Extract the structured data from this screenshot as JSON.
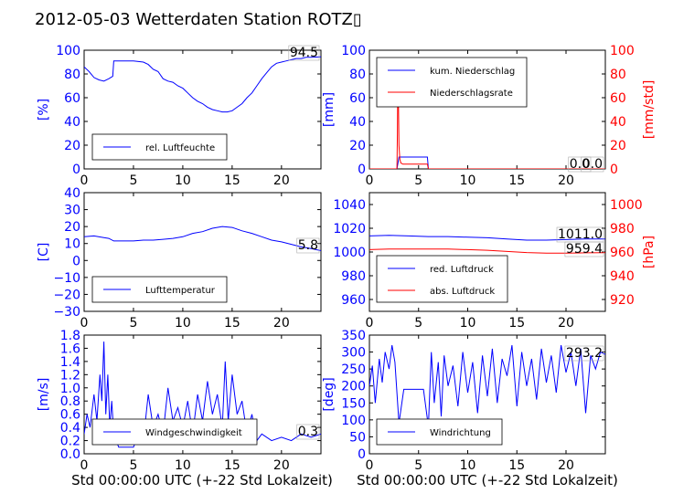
{
  "title": "2012-05-03 Wetterdaten Station ROTZ▯",
  "xlabel": "Std 00:00:00 UTC (+-22 Std Lokalzeit)",
  "colors": {
    "primary": "#0000ff",
    "secondary": "#ff0000",
    "axis": "#000000"
  },
  "chart_data": [
    {
      "id": "humidity",
      "type": "line",
      "ylabel": "[%]",
      "xlim": [
        0,
        24
      ],
      "ylim": [
        0,
        100
      ],
      "xticks": [
        "0",
        "5",
        "10",
        "15",
        "20"
      ],
      "yticks": [
        "0",
        "20",
        "40",
        "60",
        "80",
        "100"
      ],
      "value_box": "94.5",
      "legend": "lower-left",
      "series": [
        {
          "name": "rel. Luftfeuchte",
          "color": "#0000ff",
          "x": [
            0,
            0.5,
            1.0,
            1.5,
            2.0,
            2.5,
            2.9,
            3.0,
            4.0,
            5.0,
            6.0,
            6.5,
            7.0,
            7.5,
            8.0,
            8.5,
            9.0,
            9.5,
            10.0,
            10.5,
            11.0,
            11.5,
            12.0,
            12.5,
            13.0,
            13.5,
            14.0,
            14.5,
            15.0,
            15.5,
            16.0,
            16.5,
            17.0,
            17.5,
            18.0,
            18.5,
            19.0,
            19.5,
            20.0,
            20.5,
            21.0,
            21.5,
            22.0,
            22.5,
            23.0,
            24.0
          ],
          "y": [
            86,
            82,
            77,
            75,
            74,
            76,
            78,
            91,
            91,
            91,
            90,
            88,
            84,
            82,
            76,
            74,
            73,
            70,
            68,
            64,
            60,
            57,
            55,
            52,
            50,
            49,
            48,
            48,
            49,
            52,
            55,
            60,
            64,
            70,
            76,
            81,
            86,
            89,
            90,
            91,
            92,
            93,
            93,
            94,
            94,
            94.5
          ]
        }
      ]
    },
    {
      "id": "precipitation",
      "type": "line",
      "ylabel": "[mm]",
      "ylabel_right": "[mm/std]",
      "xlim": [
        0,
        24
      ],
      "ylim": [
        0,
        100
      ],
      "ylim_right": [
        0,
        100
      ],
      "xticks": [
        "0",
        "5",
        "10",
        "15",
        "20"
      ],
      "yticks": [
        "0",
        "20",
        "40",
        "60",
        "80",
        "100"
      ],
      "yticks_right": [
        "0",
        "20",
        "40",
        "60",
        "80",
        "100"
      ],
      "value_box": "0.0",
      "value_box2": "0.0",
      "legend": "upper-left",
      "series": [
        {
          "name": "kum. Niederschlag",
          "color": "#0000ff",
          "axis": "left",
          "x": [
            0,
            2.8,
            2.9,
            3.0,
            5.9,
            6.0,
            24
          ],
          "y": [
            0,
            0,
            5,
            10,
            10,
            0,
            0
          ]
        },
        {
          "name": "Niederschlagsrate",
          "color": "#ff0000",
          "axis": "right",
          "x": [
            0,
            2.8,
            2.85,
            2.9,
            2.95,
            3.0,
            3.1,
            3.2,
            3.4,
            5.9,
            6.0,
            24
          ],
          "y": [
            0,
            0,
            30,
            93,
            60,
            20,
            8,
            5,
            4,
            4,
            0,
            0
          ]
        }
      ]
    },
    {
      "id": "temperature",
      "type": "line",
      "ylabel": "[C]",
      "xlim": [
        0,
        24
      ],
      "ylim": [
        -30,
        40
      ],
      "xticks": [
        "0",
        "5",
        "10",
        "15",
        "20"
      ],
      "yticks": [
        "−30",
        "−20",
        "−10",
        "0",
        "10",
        "20",
        "30",
        "40"
      ],
      "value_box": "5.8",
      "legend": "lower-left",
      "series": [
        {
          "name": "Lufttemperatur",
          "color": "#0000ff",
          "x": [
            0,
            1,
            2,
            2.5,
            3,
            4,
            5,
            6,
            7,
            8,
            9,
            10,
            11,
            12,
            13,
            14,
            15,
            16,
            17,
            18,
            19,
            20,
            21,
            22,
            23,
            24
          ],
          "y": [
            14,
            14.5,
            13.5,
            13,
            11.5,
            11.5,
            11.5,
            12,
            12,
            12.5,
            13,
            14,
            16,
            17,
            19,
            20,
            19.5,
            17.5,
            16,
            14,
            12,
            11,
            9.5,
            8,
            7,
            5.8
          ]
        }
      ]
    },
    {
      "id": "pressure",
      "type": "line",
      "ylabel": "",
      "ylabel_right": "[hPa]",
      "xlim": [
        0,
        24
      ],
      "ylim": [
        950,
        1050
      ],
      "ylim_right": [
        910,
        1010
      ],
      "xticks": [
        "0",
        "5",
        "10",
        "15",
        "20"
      ],
      "yticks": [
        "960",
        "980",
        "1000",
        "1020",
        "1040"
      ],
      "yticks_right": [
        "920",
        "940",
        "960",
        "980",
        "1000"
      ],
      "value_box": "1011.0",
      "value_box2": "959.4",
      "legend": "lower-left",
      "series": [
        {
          "name": "red. Luftdruck",
          "color": "#0000ff",
          "axis": "left",
          "x": [
            0,
            2,
            4,
            6,
            8,
            10,
            12,
            14,
            16,
            18,
            20,
            22,
            24
          ],
          "y": [
            1013.5,
            1014,
            1013.5,
            1013,
            1013,
            1012.5,
            1012,
            1011,
            1010,
            1010,
            1010.5,
            1011,
            1011
          ]
        },
        {
          "name": "abs. Luftdruck",
          "color": "#ff0000",
          "axis": "right",
          "x": [
            0,
            2,
            4,
            6,
            8,
            10,
            12,
            14,
            16,
            18,
            20,
            22,
            24
          ],
          "y": [
            962,
            962.5,
            962.5,
            962.5,
            962.5,
            962,
            961.5,
            960.5,
            959.5,
            959,
            959,
            959.3,
            959.4
          ]
        }
      ]
    },
    {
      "id": "windspeed",
      "type": "line",
      "ylabel": "[m/s]",
      "xlim": [
        0,
        24
      ],
      "ylim": [
        0,
        1.8
      ],
      "xticks": [
        "0",
        "5",
        "10",
        "15",
        "20"
      ],
      "yticks": [
        "0.0",
        "0.2",
        "0.4",
        "0.6",
        "0.8",
        "1.0",
        "1.2",
        "1.4",
        "1.6",
        "1.8"
      ],
      "value_box": "0.3",
      "legend": "lower-left",
      "series": [
        {
          "name": "Windgeschwindigkeit",
          "color": "#0000ff",
          "x": [
            0,
            0.3,
            0.6,
            1.0,
            1.3,
            1.6,
            1.8,
            2.0,
            2.2,
            2.4,
            2.6,
            2.8,
            3.0,
            3.5,
            4.0,
            4.5,
            5.0,
            5.5,
            6.0,
            6.5,
            7.0,
            7.5,
            8.0,
            8.5,
            9.0,
            9.5,
            10.0,
            10.5,
            11.0,
            11.5,
            12.0,
            12.5,
            13.0,
            13.5,
            14.0,
            14.3,
            14.6,
            15.0,
            15.5,
            16.0,
            16.5,
            17.0,
            17.5,
            18.0,
            19.0,
            20.0,
            21.0,
            22.0,
            23.0,
            24.0
          ],
          "y": [
            0.3,
            0.6,
            0.4,
            0.9,
            0.5,
            1.2,
            0.8,
            1.7,
            0.6,
            1.2,
            0.4,
            0.8,
            0.3,
            0.1,
            0.1,
            0.1,
            0.1,
            0.3,
            0.2,
            0.9,
            0.4,
            0.6,
            0.3,
            1.0,
            0.5,
            0.7,
            0.4,
            0.8,
            0.3,
            0.9,
            0.5,
            1.1,
            0.6,
            0.9,
            0.4,
            1.4,
            0.5,
            1.2,
            0.6,
            0.8,
            0.3,
            0.6,
            0.2,
            0.3,
            0.2,
            0.25,
            0.2,
            0.3,
            0.25,
            0.3
          ]
        }
      ]
    },
    {
      "id": "winddirection",
      "type": "line",
      "ylabel": "[deg]",
      "xlim": [
        0,
        24
      ],
      "ylim": [
        0,
        350
      ],
      "xticks": [
        "0",
        "5",
        "10",
        "15",
        "20"
      ],
      "yticks": [
        "0",
        "50",
        "100",
        "150",
        "200",
        "250",
        "300",
        "350"
      ],
      "value_box": "293.2",
      "legend": "lower-left",
      "series": [
        {
          "name": "Windrichtung",
          "color": "#0000ff",
          "x": [
            0,
            0.3,
            0.6,
            1.0,
            1.3,
            1.6,
            2.0,
            2.3,
            2.6,
            3.0,
            3.5,
            4.0,
            5.0,
            5.5,
            6.0,
            6.3,
            6.6,
            7.0,
            7.3,
            7.6,
            8.0,
            8.5,
            9.0,
            9.5,
            10.0,
            10.5,
            11.0,
            11.5,
            12.0,
            12.5,
            13.0,
            13.5,
            14.0,
            14.5,
            15.0,
            15.5,
            16.0,
            16.5,
            17.0,
            17.5,
            18.0,
            18.5,
            19.0,
            19.5,
            20.0,
            20.5,
            21.0,
            21.5,
            22.0,
            22.5,
            23.0,
            23.5,
            24.0
          ],
          "y": [
            200,
            260,
            150,
            280,
            210,
            300,
            250,
            320,
            270,
            90,
            190,
            190,
            190,
            190,
            80,
            300,
            150,
            270,
            110,
            290,
            200,
            260,
            140,
            300,
            180,
            270,
            120,
            290,
            170,
            310,
            150,
            280,
            230,
            320,
            140,
            300,
            200,
            280,
            160,
            310,
            210,
            290,
            180,
            320,
            240,
            300,
            200,
            310,
            120,
            290,
            250,
            300,
            293
          ]
        }
      ]
    }
  ]
}
